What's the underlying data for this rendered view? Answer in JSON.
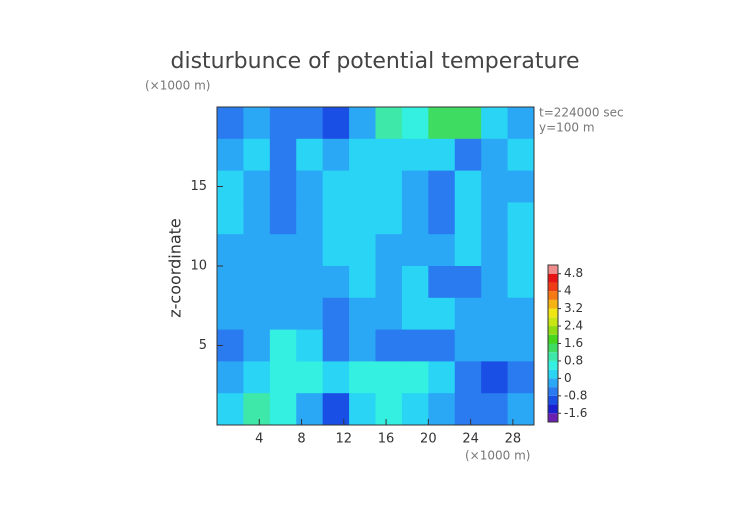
{
  "chart_data": {
    "type": "contour",
    "title": "disturbunce of potential temperature",
    "x_unit": "(×1000 m)",
    "y_unit": "(×1000 m)",
    "ylabel": "z-coordinate",
    "annotations": [
      "t=224000 sec",
      "y=100 m"
    ],
    "xlim": [
      0,
      30
    ],
    "ylim": [
      0,
      20
    ],
    "xticks": [
      4,
      8,
      12,
      16,
      20,
      24,
      28
    ],
    "yticks": [
      5,
      10,
      15
    ],
    "z": [
      [
        -0.6,
        -0.4,
        -0.6,
        -0.8,
        -1.0,
        -0.2,
        0.8,
        0.6,
        1.2,
        1.4,
        0.2,
        -0.4
      ],
      [
        -0.2,
        0.0,
        -0.6,
        0.0,
        -0.4,
        0.0,
        0.2,
        0.0,
        0.2,
        -0.6,
        -0.2,
        0.0
      ],
      [
        0.0,
        -0.2,
        -0.6,
        -0.4,
        0.0,
        0.0,
        0.2,
        -0.2,
        -0.6,
        0.0,
        -0.4,
        -0.2
      ],
      [
        0.0,
        -0.4,
        -0.6,
        -0.4,
        0.0,
        0.2,
        0.0,
        -0.2,
        -0.6,
        0.0,
        -0.2,
        0.0
      ],
      [
        -0.2,
        -0.2,
        -0.4,
        -0.2,
        0.0,
        0.0,
        -0.2,
        -0.4,
        -0.4,
        0.0,
        -0.2,
        0.0
      ],
      [
        -0.4,
        -0.2,
        -0.2,
        -0.4,
        -0.4,
        0.0,
        -0.4,
        0.0,
        -0.6,
        -0.8,
        -0.4,
        0.0
      ],
      [
        -0.4,
        -0.2,
        -0.4,
        -0.2,
        -0.6,
        -0.4,
        -0.2,
        0.0,
        0.0,
        -0.4,
        -0.2,
        -0.2
      ],
      [
        -0.6,
        -0.2,
        0.4,
        0.2,
        -0.8,
        -0.4,
        -0.6,
        -0.6,
        -0.6,
        -0.4,
        -0.4,
        -0.2
      ],
      [
        -0.2,
        0.0,
        0.4,
        0.4,
        0.0,
        0.4,
        0.6,
        0.4,
        0.0,
        -0.6,
        -1.0,
        -0.6
      ],
      [
        0.0,
        0.8,
        0.4,
        -0.4,
        -1.0,
        0.0,
        0.4,
        0.0,
        -0.2,
        -0.6,
        -0.8,
        -0.4
      ]
    ],
    "colorbar": {
      "levels": [
        -2.0,
        -1.6,
        -1.2,
        -0.8,
        -0.4,
        0.0,
        0.4,
        0.8,
        1.2,
        1.6,
        2.0,
        2.4,
        2.8,
        3.2,
        3.6,
        4.0,
        4.4,
        4.8,
        5.2
      ],
      "colors": [
        "#6a1fb0",
        "#1a1fd0",
        "#1a4fe6",
        "#2a7af0",
        "#2aa8f5",
        "#29d4f5",
        "#33f0e0",
        "#3ee8a8",
        "#3edc60",
        "#46d61e",
        "#8fdc14",
        "#c8e614",
        "#f0e614",
        "#f5b414",
        "#f57a14",
        "#f03c14",
        "#e61414",
        "#f08c8c"
      ],
      "ticks": [
        -1.6,
        -0.8,
        0,
        0.8,
        1.6,
        2.4,
        3.2,
        4,
        4.8
      ]
    }
  }
}
